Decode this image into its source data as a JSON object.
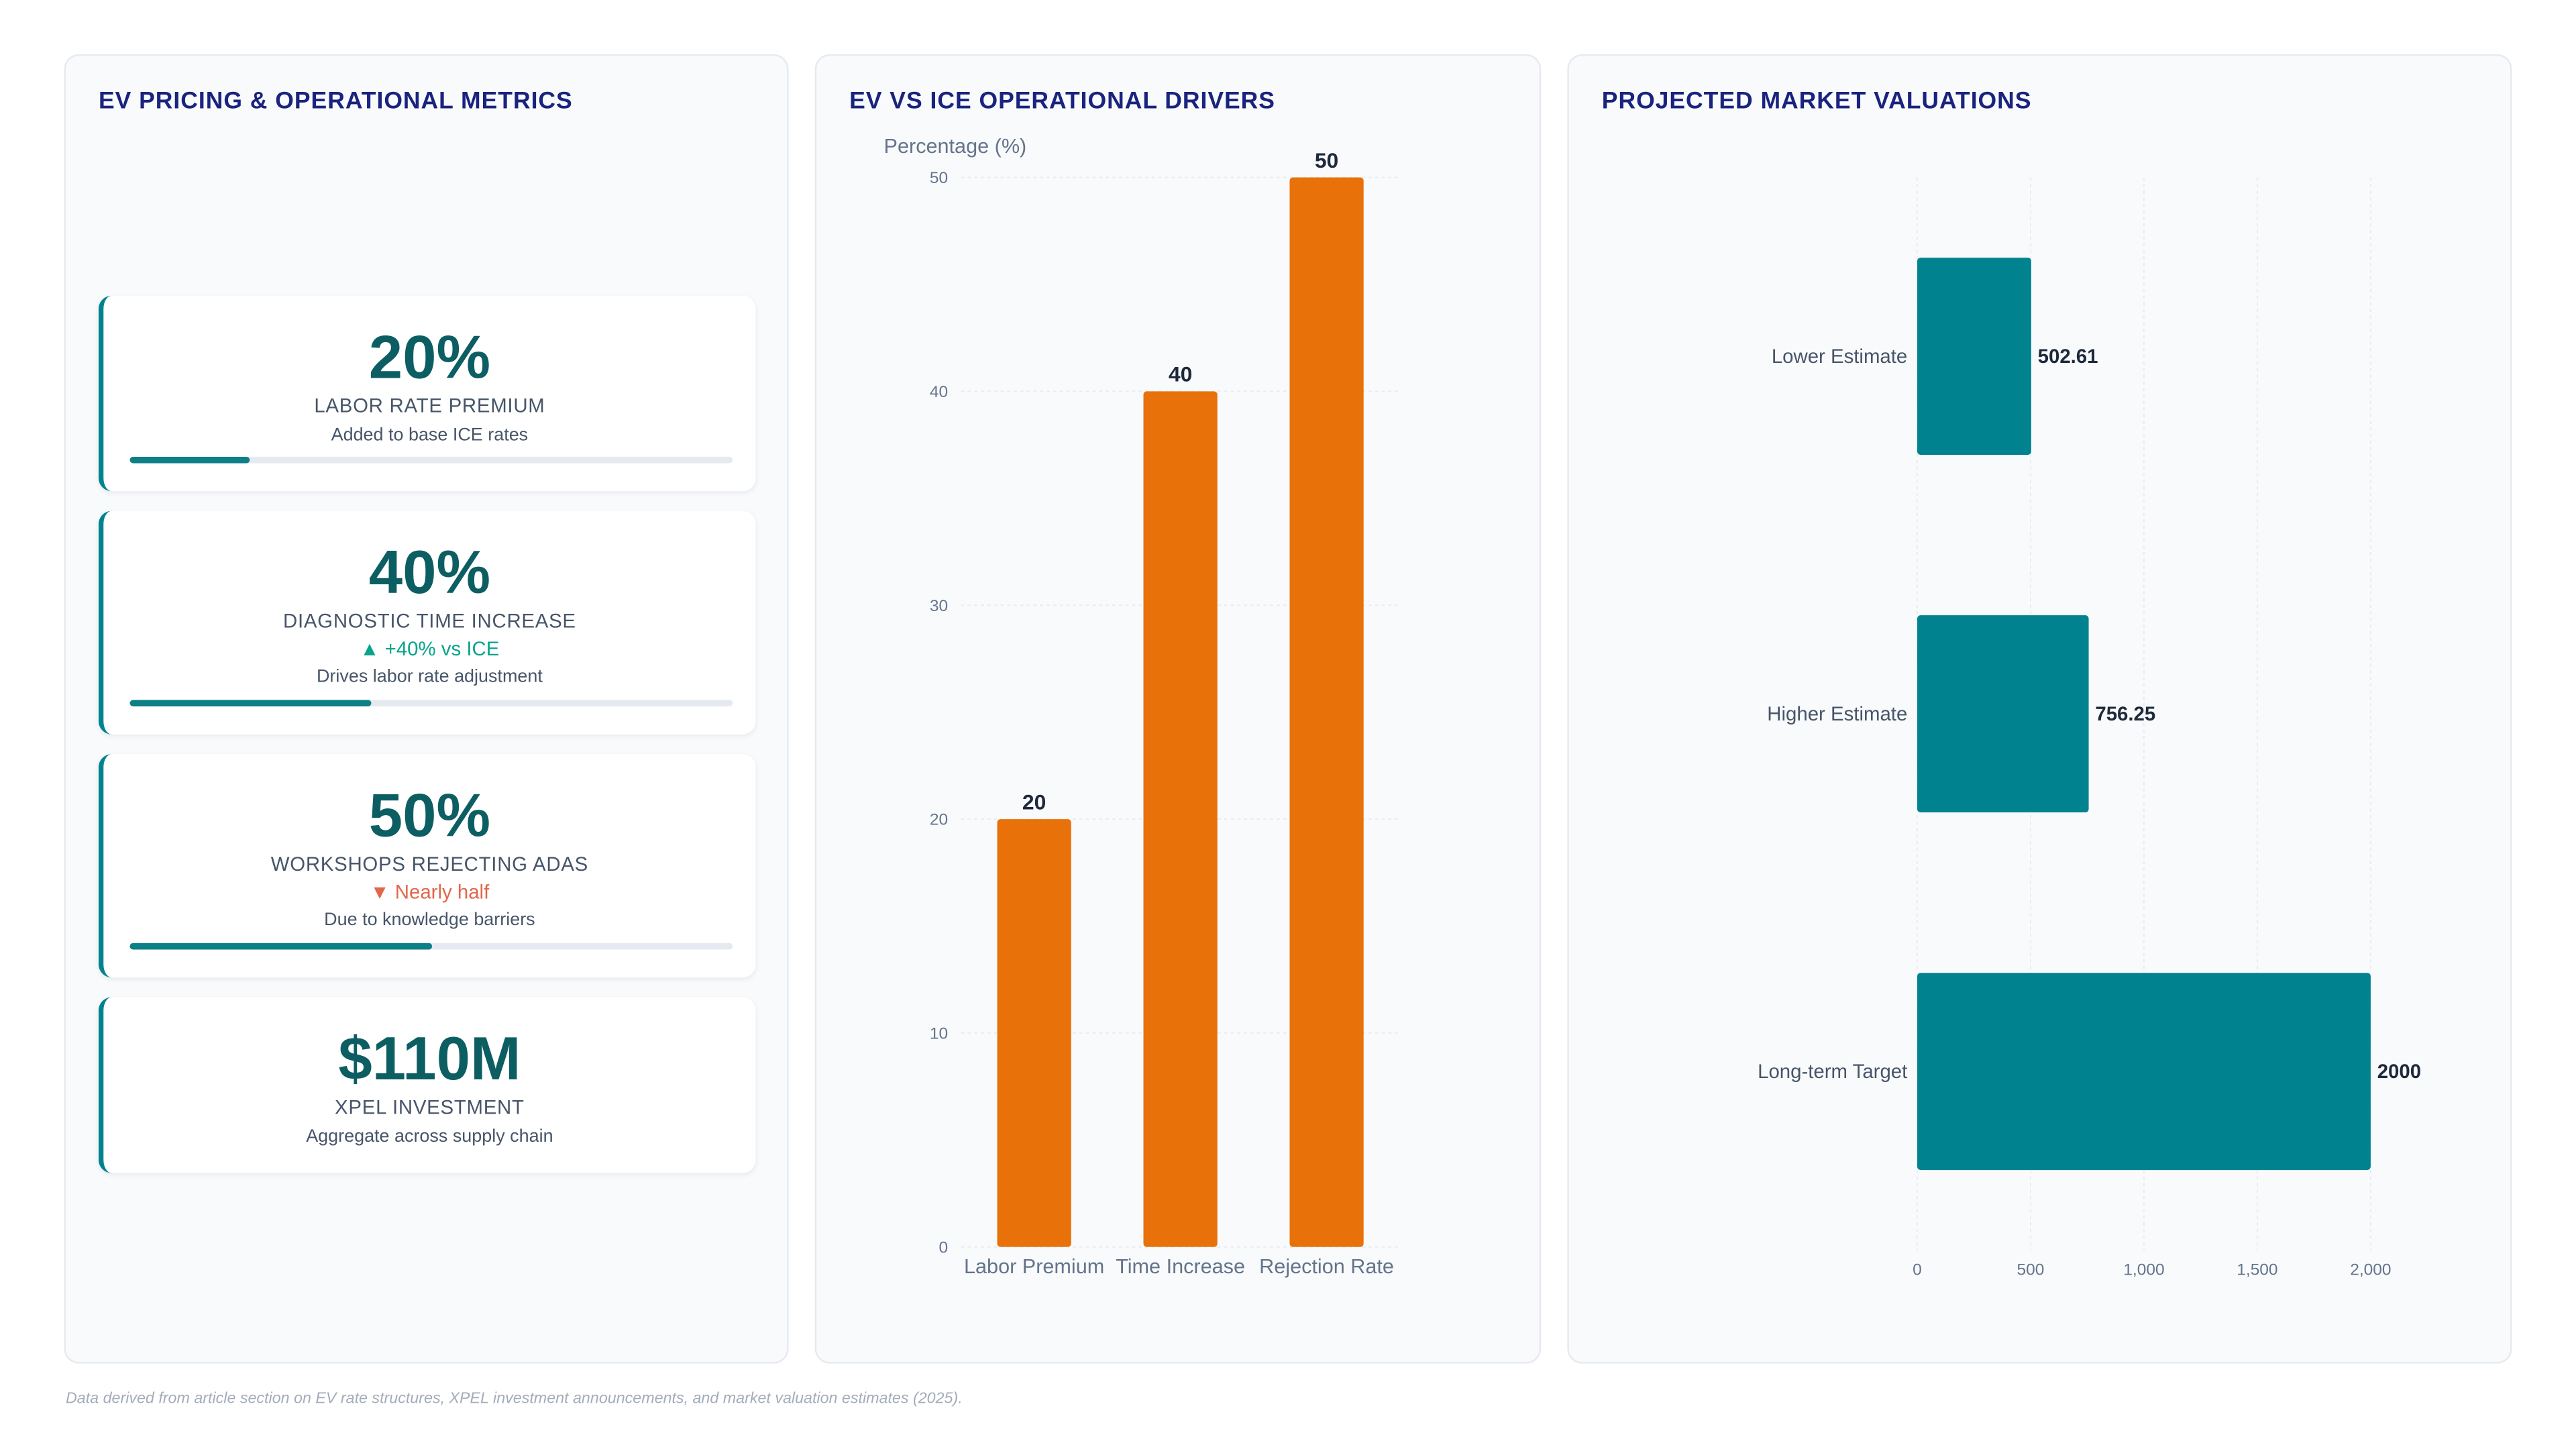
{
  "metrics_panel": {
    "title": "EV PRICING & OPERATIONAL METRICS",
    "cards": [
      {
        "value": "20%",
        "label": "LABOR RATE PREMIUM",
        "trend": "",
        "subtext": "Added to base ICE rates",
        "progress_percent": 20
      },
      {
        "value": "40%",
        "label": "DIAGNOSTIC TIME INCREASE",
        "trend": "▲ +40% vs ICE",
        "subtext": "Drives labor rate adjustment",
        "progress_percent": 40
      },
      {
        "value": "50%",
        "label": "WORKSHOPS REJECTING ADAS",
        "trend": "▼ Nearly half",
        "subtext": "Due to knowledge barriers",
        "progress_percent": 50
      },
      {
        "value": "$110M",
        "label": "XPEL INVESTMENT",
        "trend": "",
        "subtext": "Aggregate across supply chain"
      }
    ]
  },
  "drivers_panel": {
    "title": "EV VS ICE OPERATIONAL DRIVERS"
  },
  "valuations_panel": {
    "title": "PROJECTED MARKET VALUATIONS"
  },
  "footnote": "Data derived from article section on EV rate structures, XPEL investment announcements, and market valuation estimates (2025).",
  "colors": {
    "bar_orange": "#e8710a",
    "bar_teal": "#00838f",
    "title_navy": "#1a237e",
    "kpi_value": "#0d5e63",
    "trend_up": "#0aa38c",
    "trend_down": "#e2664a"
  },
  "chart_data": [
    {
      "type": "bar",
      "orientation": "vertical",
      "title": "",
      "ylabel": "Percentage (%)",
      "xlabel": "",
      "categories": [
        "Labor Premium",
        "Time Increase",
        "Rejection Rate"
      ],
      "values": [
        20,
        40,
        50
      ],
      "data_labels": [
        "20",
        "40",
        "50"
      ],
      "ylim": [
        0,
        50
      ],
      "yticks": [
        0,
        10,
        20,
        30,
        40,
        50
      ],
      "ytick_labels": [
        "0",
        "10",
        "20",
        "30",
        "40",
        "50"
      ],
      "grid": true,
      "color": "#e8710a"
    },
    {
      "type": "bar",
      "orientation": "horizontal",
      "title": "",
      "xlabel": "",
      "ylabel": "",
      "categories": [
        "Lower Estimate",
        "Higher Estimate",
        "Long-term Target"
      ],
      "values": [
        502.61,
        756.25,
        2000
      ],
      "data_labels": [
        "502.61",
        "756.25",
        "2000"
      ],
      "xlim": [
        0,
        2000
      ],
      "xticks": [
        0,
        500,
        1000,
        1500,
        2000
      ],
      "xtick_labels": [
        "0",
        "500",
        "1,000",
        "1,500",
        "2,000"
      ],
      "grid": true,
      "color": "#00838f"
    }
  ]
}
